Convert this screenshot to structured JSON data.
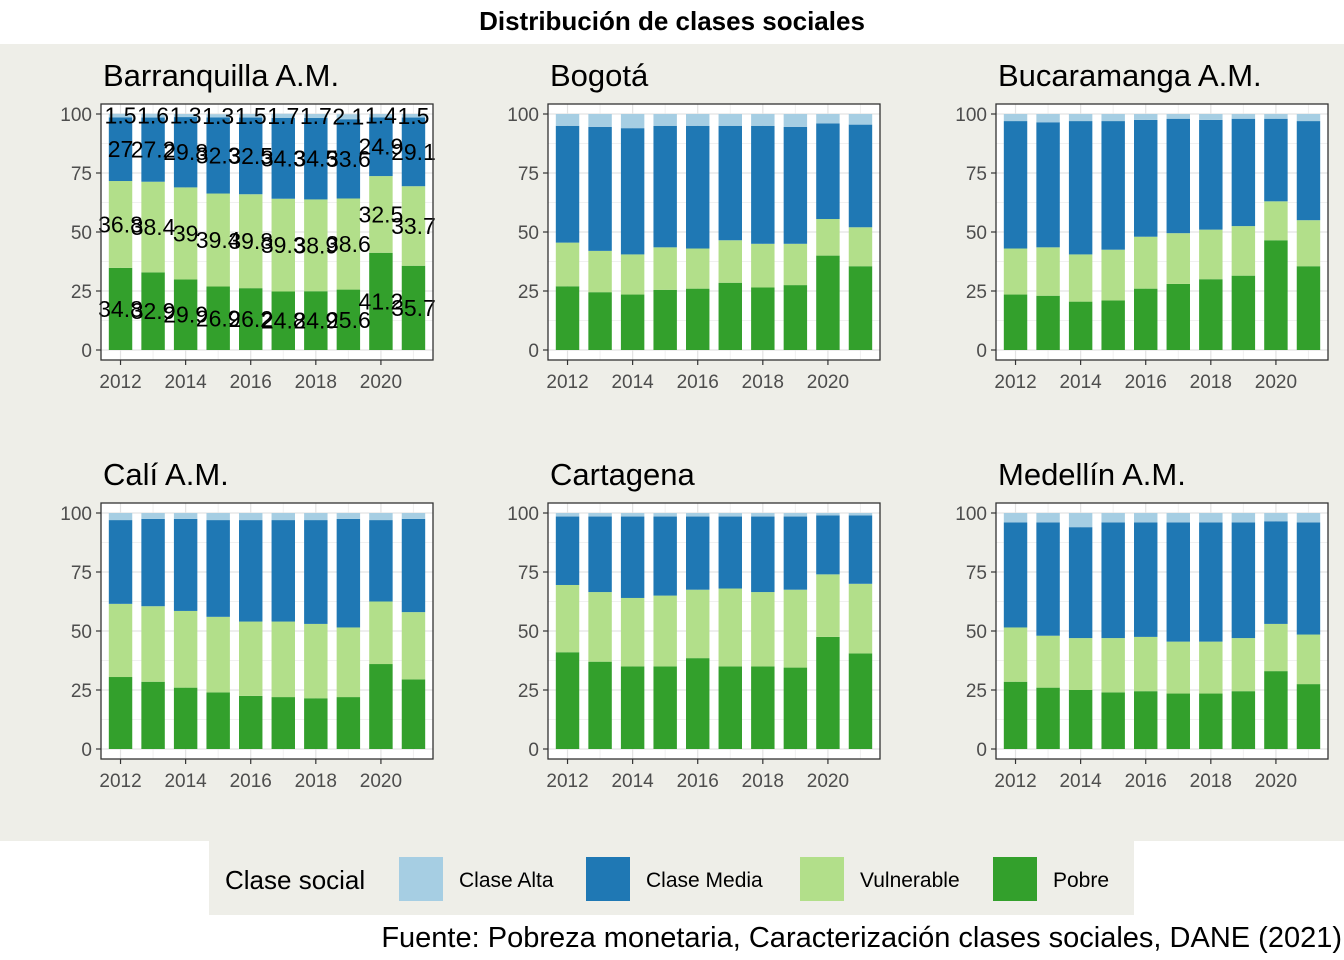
{
  "title": "Distribución de clases sociales",
  "caption": "Fuente: Pobreza monetaria, Caracterización clases sociales, DANE (2021)",
  "legend": {
    "title": "Clase social",
    "items": [
      {
        "label": "Clase Alta",
        "color": "#a6cee3"
      },
      {
        "label": "Clase Media",
        "color": "#1f78b4"
      },
      {
        "label": "Vulnerable",
        "color": "#b2df8a"
      },
      {
        "label": "Pobre",
        "color": "#33a02c"
      }
    ]
  },
  "chart_data": {
    "type": "bar",
    "stacked": true,
    "x": [
      2012,
      2013,
      2014,
      2015,
      2016,
      2017,
      2018,
      2019,
      2020,
      2021
    ],
    "xticks": [
      2012,
      2014,
      2016,
      2018,
      2020
    ],
    "yticks": [
      0,
      25,
      50,
      75,
      100
    ],
    "ylim": [
      0,
      100
    ],
    "grid": true,
    "legend_position": "bottom",
    "panels": [
      {
        "name": "Barranquilla A.M.",
        "show_labels": true,
        "series": [
          {
            "name": "Pobre",
            "values": [
              34.8,
              32.9,
              29.9,
              26.9,
              26.2,
              24.8,
              24.9,
              25.6,
              41.2,
              35.7
            ]
          },
          {
            "name": "Vulnerable",
            "values": [
              36.8,
              38.4,
              39.0,
              39.4,
              39.8,
              39.3,
              38.9,
              38.6,
              32.5,
              33.7
            ]
          },
          {
            "name": "Clase Media",
            "values": [
              27.0,
              27.2,
              29.8,
              32.3,
              32.5,
              34.3,
              34.5,
              33.6,
              24.9,
              29.1
            ]
          },
          {
            "name": "Clase Alta",
            "values": [
              1.5,
              1.6,
              1.3,
              1.3,
              1.5,
              1.7,
              1.7,
              2.1,
              1.4,
              1.5
            ]
          }
        ]
      },
      {
        "name": "Bogotá",
        "show_labels": false,
        "series": [
          {
            "name": "Pobre",
            "values": [
              27.0,
              24.5,
              23.5,
              25.5,
              26.0,
              28.5,
              26.5,
              27.5,
              40.0,
              35.5
            ]
          },
          {
            "name": "Vulnerable",
            "values": [
              18.5,
              17.5,
              17.0,
              18.0,
              17.0,
              18.0,
              18.5,
              17.5,
              15.5,
              16.5
            ]
          },
          {
            "name": "Clase Media",
            "values": [
              49.5,
              52.5,
              53.5,
              51.5,
              52.0,
              48.5,
              50.0,
              49.5,
              40.5,
              43.5
            ]
          },
          {
            "name": "Clase Alta",
            "values": [
              5.0,
              5.5,
              6.0,
              5.0,
              5.0,
              5.0,
              5.0,
              5.5,
              4.0,
              4.5
            ]
          }
        ]
      },
      {
        "name": "Bucaramanga A.M.",
        "show_labels": false,
        "series": [
          {
            "name": "Pobre",
            "values": [
              23.5,
              23.0,
              20.5,
              21.0,
              26.0,
              28.0,
              30.0,
              31.5,
              46.5,
              35.5
            ]
          },
          {
            "name": "Vulnerable",
            "values": [
              19.5,
              20.5,
              20.0,
              21.5,
              22.0,
              21.5,
              21.0,
              21.0,
              16.5,
              19.5
            ]
          },
          {
            "name": "Clase Media",
            "values": [
              54.0,
              53.0,
              56.5,
              54.5,
              49.5,
              48.5,
              46.5,
              45.5,
              35.0,
              42.0
            ]
          },
          {
            "name": "Clase Alta",
            "values": [
              3.0,
              3.5,
              3.0,
              3.0,
              2.5,
              2.0,
              2.5,
              2.0,
              2.0,
              3.0
            ]
          }
        ]
      },
      {
        "name": "Calí A.M.",
        "show_labels": false,
        "series": [
          {
            "name": "Pobre",
            "values": [
              30.5,
              28.5,
              26.0,
              24.0,
              22.5,
              22.0,
              21.5,
              22.0,
              36.0,
              29.5
            ]
          },
          {
            "name": "Vulnerable",
            "values": [
              31.0,
              32.0,
              32.5,
              32.0,
              31.5,
              32.0,
              31.5,
              29.5,
              26.5,
              28.5
            ]
          },
          {
            "name": "Clase Media",
            "values": [
              35.5,
              37.0,
              39.0,
              41.0,
              43.0,
              43.0,
              44.0,
              46.0,
              34.5,
              39.5
            ]
          },
          {
            "name": "Clase Alta",
            "values": [
              3.0,
              2.5,
              2.5,
              3.0,
              3.0,
              3.0,
              3.0,
              2.5,
              3.0,
              2.5
            ]
          }
        ]
      },
      {
        "name": "Cartagena",
        "show_labels": false,
        "series": [
          {
            "name": "Pobre",
            "values": [
              41.0,
              37.0,
              35.0,
              35.0,
              38.5,
              35.0,
              35.0,
              34.5,
              47.5,
              40.5
            ]
          },
          {
            "name": "Vulnerable",
            "values": [
              28.5,
              29.5,
              29.0,
              30.0,
              29.0,
              33.0,
              31.5,
              33.0,
              26.5,
              29.5
            ]
          },
          {
            "name": "Clase Media",
            "values": [
              29.0,
              32.0,
              34.5,
              33.5,
              31.0,
              30.5,
              32.0,
              31.0,
              25.0,
              29.0
            ]
          },
          {
            "name": "Clase Alta",
            "values": [
              1.5,
              1.5,
              1.5,
              1.5,
              1.5,
              1.5,
              1.5,
              1.5,
              1.0,
              1.0
            ]
          }
        ]
      },
      {
        "name": "Medellín A.M.",
        "show_labels": false,
        "series": [
          {
            "name": "Pobre",
            "values": [
              28.5,
              26.0,
              25.0,
              24.0,
              24.5,
              23.5,
              23.5,
              24.5,
              33.0,
              27.5
            ]
          },
          {
            "name": "Vulnerable",
            "values": [
              23.0,
              22.0,
              22.0,
              23.0,
              23.0,
              22.0,
              22.0,
              22.5,
              20.0,
              21.0
            ]
          },
          {
            "name": "Clase Media",
            "values": [
              44.5,
              48.0,
              47.0,
              49.0,
              48.5,
              50.5,
              50.5,
              49.0,
              43.5,
              47.5
            ]
          },
          {
            "name": "Clase Alta",
            "values": [
              4.0,
              4.0,
              6.0,
              4.0,
              4.0,
              4.0,
              4.0,
              4.0,
              3.5,
              4.0
            ]
          }
        ]
      }
    ]
  }
}
